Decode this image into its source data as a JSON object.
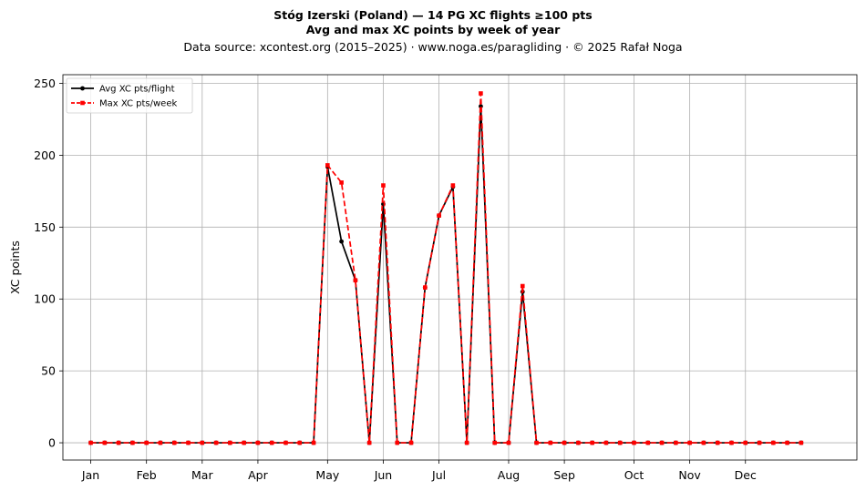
{
  "chart_data": {
    "type": "line",
    "title": "Stóg Izerski (Poland)  —  14 PG XC flights ≥100 pts",
    "subtitle": "Avg and max XC points by week of year",
    "source_line": "Data source: xcontest.org (2015–2025)  ·  www.noga.es/paragliding  ·  © 2025 Rafał Noga",
    "xlabel": "",
    "ylabel": "XC points",
    "x_unit": "week of year",
    "x": [
      1,
      2,
      3,
      4,
      5,
      6,
      7,
      8,
      9,
      10,
      11,
      12,
      13,
      14,
      15,
      16,
      17,
      18,
      19,
      20,
      21,
      22,
      23,
      24,
      25,
      26,
      27,
      28,
      29,
      30,
      31,
      32,
      33,
      34,
      35,
      36,
      37,
      38,
      39,
      40,
      41,
      42,
      43,
      44,
      45,
      46,
      47,
      48,
      49,
      50,
      51,
      52
    ],
    "xlim": [
      -1,
      56
    ],
    "ylim": [
      -12,
      256
    ],
    "yticks": [
      0,
      50,
      100,
      150,
      200,
      250
    ],
    "xticks": [
      {
        "label": "Jan",
        "week": 1
      },
      {
        "label": "Feb",
        "week": 5
      },
      {
        "label": "Mar",
        "week": 9
      },
      {
        "label": "Apr",
        "week": 13
      },
      {
        "label": "May",
        "week": 18
      },
      {
        "label": "Jun",
        "week": 22
      },
      {
        "label": "Jul",
        "week": 26
      },
      {
        "label": "Aug",
        "week": 31
      },
      {
        "label": "Sep",
        "week": 35
      },
      {
        "label": "Oct",
        "week": 40
      },
      {
        "label": "Nov",
        "week": 44
      },
      {
        "label": "Dec",
        "week": 48
      }
    ],
    "grid": true,
    "legend_position": "top-left",
    "series": [
      {
        "name": "Avg XC pts/flight",
        "color": "#000000",
        "linestyle": "solid",
        "marker": "circle",
        "values": [
          0,
          0,
          0,
          0,
          0,
          0,
          0,
          0,
          0,
          0,
          0,
          0,
          0,
          0,
          0,
          0,
          0,
          192,
          140,
          113,
          0,
          166,
          0,
          0,
          108,
          158,
          178,
          0,
          234,
          0,
          0,
          105,
          0,
          0,
          0,
          0,
          0,
          0,
          0,
          0,
          0,
          0,
          0,
          0,
          0,
          0,
          0,
          0,
          0,
          0,
          0,
          0
        ]
      },
      {
        "name": "Max XC pts/week",
        "color": "#ff0000",
        "linestyle": "dashed",
        "marker": "square",
        "values": [
          0,
          0,
          0,
          0,
          0,
          0,
          0,
          0,
          0,
          0,
          0,
          0,
          0,
          0,
          0,
          0,
          0,
          193,
          181,
          113,
          0,
          179,
          0,
          0,
          108,
          158,
          179,
          0,
          243,
          0,
          0,
          109,
          0,
          0,
          0,
          0,
          0,
          0,
          0,
          0,
          0,
          0,
          0,
          0,
          0,
          0,
          0,
          0,
          0,
          0,
          0,
          0
        ]
      }
    ]
  }
}
